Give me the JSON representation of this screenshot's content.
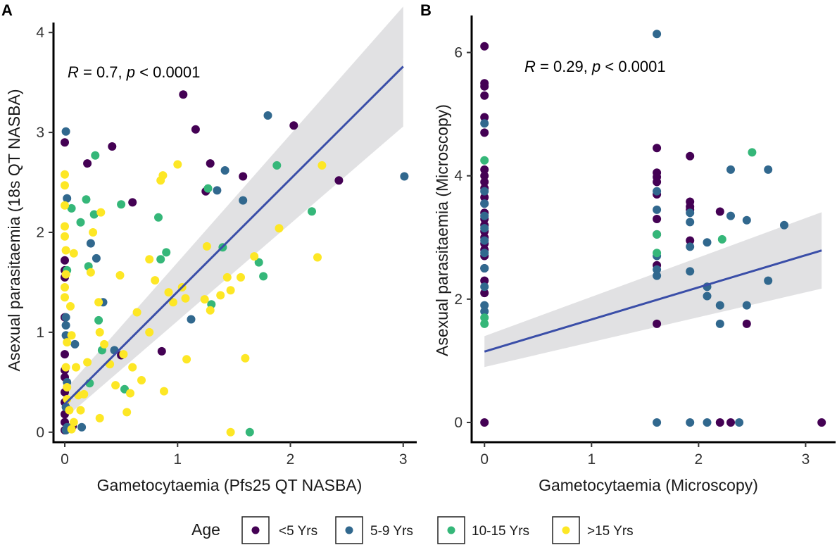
{
  "legend": {
    "title": "Age",
    "items": [
      {
        "label": "<5 Yrs",
        "color": "#440154"
      },
      {
        "label": "5-9 Yrs",
        "color": "#31688E"
      },
      {
        "label": "10-15 Yrs",
        "color": "#35B779"
      },
      {
        "label": ">15 Yrs",
        "color": "#FDE725"
      }
    ]
  },
  "chart_data": [
    {
      "panel_label": "A",
      "type": "scatter",
      "xlabel": "Gametocytaemia (Pfs25 QT NASBA)",
      "ylabel": "Asexual parasitaemia (18s QT NASBA)",
      "xlim": [
        -0.1,
        3.12
      ],
      "ylim": [
        -0.1,
        4.1
      ],
      "xticks": [
        0,
        1,
        2,
        3
      ],
      "yticks": [
        0,
        1,
        2,
        3,
        4
      ],
      "grid": false,
      "annotation": {
        "r_sym": "R",
        "r_text": " = 0.7, ",
        "p_sym": "p",
        "p_text": " < 0.0001"
      },
      "regression": {
        "x0": 0,
        "y0": 0.28,
        "x1": 3.0,
        "y1": 3.66,
        "ci_at_x0": 0.14,
        "ci_at_x1": 0.6,
        "ci_color": "#c8c8cc",
        "line_color": "#3a4ea8"
      },
      "series": [
        {
          "name": "<5 Yrs",
          "points": [
            [
              0,
              2.9
            ],
            [
              0,
              1.72
            ],
            [
              0,
              1.62
            ],
            [
              0,
              1.55
            ],
            [
              0,
              1.15
            ],
            [
              0,
              0.78
            ],
            [
              0,
              0.62
            ],
            [
              0,
              0.55
            ],
            [
              0,
              0.4
            ],
            [
              0,
              0.3
            ],
            [
              0,
              0.18
            ],
            [
              0,
              0.1
            ],
            [
              0,
              0.02
            ],
            [
              0.2,
              2.69
            ],
            [
              0.42,
              2.86
            ],
            [
              0.6,
              2.3
            ],
            [
              0.5,
              0.77
            ],
            [
              0.86,
              0.81
            ],
            [
              1.05,
              3.38
            ],
            [
              1.16,
              3.03
            ],
            [
              1.25,
              2.41
            ],
            [
              1.29,
              2.69
            ],
            [
              1.58,
              2.56
            ],
            [
              2.03,
              3.07
            ],
            [
              2.43,
              2.52
            ],
            [
              0.07,
              0.06
            ]
          ]
        },
        {
          "name": "5-9 Yrs",
          "points": [
            [
              0.01,
              3.01
            ],
            [
              0.02,
              2.34
            ],
            [
              0.01,
              1.15
            ],
            [
              0.01,
              1.07
            ],
            [
              0.01,
              0.97
            ],
            [
              0.02,
              0.5
            ],
            [
              0.01,
              0.25
            ],
            [
              0.02,
              0.05
            ],
            [
              0.01,
              0.02
            ],
            [
              0.09,
              0.88
            ],
            [
              0.15,
              0.05
            ],
            [
              0.23,
              1.89
            ],
            [
              0.28,
              1.74
            ],
            [
              0.34,
              1.3
            ],
            [
              0.44,
              0.82
            ],
            [
              1.12,
              1.13
            ],
            [
              1.35,
              2.42
            ],
            [
              1.42,
              2.62
            ],
            [
              1.58,
              2.32
            ],
            [
              1.8,
              3.17
            ],
            [
              3.01,
              2.56
            ]
          ]
        },
        {
          "name": "10-15 Yrs",
          "points": [
            [
              0.02,
              1.62
            ],
            [
              0.06,
              2.24
            ],
            [
              0.14,
              2.1
            ],
            [
              0.19,
              2.33
            ],
            [
              0.21,
              1.66
            ],
            [
              0.26,
              2.18
            ],
            [
              0.27,
              2.77
            ],
            [
              0.3,
              1.12
            ],
            [
              0.33,
              0.82
            ],
            [
              0.22,
              0.49
            ],
            [
              0.5,
              2.28
            ],
            [
              0.53,
              0.43
            ],
            [
              0.83,
              2.15
            ],
            [
              0.9,
              1.8
            ],
            [
              0.85,
              1.73
            ],
            [
              1.27,
              2.44
            ],
            [
              1.3,
              1.28
            ],
            [
              1.4,
              1.85
            ],
            [
              1.72,
              1.7
            ],
            [
              1.76,
              1.56
            ],
            [
              1.88,
              2.67
            ],
            [
              2.19,
              2.21
            ],
            [
              1.64,
              0
            ]
          ]
        },
        {
          "name": ">15 Yrs",
          "points": [
            [
              0,
              2.58
            ],
            [
              0,
              2.47
            ],
            [
              0,
              2.27
            ],
            [
              0,
              2.06
            ],
            [
              0,
              1.96
            ],
            [
              0.01,
              1.82
            ],
            [
              0.01,
              1.58
            ],
            [
              0,
              1.45
            ],
            [
              0,
              1.35
            ],
            [
              0.02,
              0.9
            ],
            [
              0.01,
              0.65
            ],
            [
              0.02,
              0.45
            ],
            [
              0.02,
              0.33
            ],
            [
              0.04,
              0.22
            ],
            [
              0.06,
              0.03
            ],
            [
              0.08,
              0.1
            ],
            [
              0.05,
              1.26
            ],
            [
              0.08,
              1.79
            ],
            [
              0.06,
              0.97
            ],
            [
              0.1,
              0.65
            ],
            [
              0.12,
              0.37
            ],
            [
              0.14,
              0.22
            ],
            [
              0.17,
              0.38
            ],
            [
              0.2,
              0.7
            ],
            [
              0.23,
              1.6
            ],
            [
              0.25,
              2.0
            ],
            [
              0.32,
              2.2
            ],
            [
              0.3,
              1.3
            ],
            [
              0.31,
              1.0
            ],
            [
              0.31,
              0.14
            ],
            [
              0.35,
              0.88
            ],
            [
              0.4,
              0.68
            ],
            [
              0.45,
              0.47
            ],
            [
              0.49,
              1.57
            ],
            [
              0.52,
              0.78
            ],
            [
              0.55,
              0.2
            ],
            [
              0.58,
              0.39
            ],
            [
              0.6,
              0.65
            ],
            [
              0.64,
              1.2
            ],
            [
              0.68,
              0.52
            ],
            [
              0.75,
              1.73
            ],
            [
              0.75,
              1.0
            ],
            [
              0.8,
              1.52
            ],
            [
              0.85,
              2.52
            ],
            [
              0.87,
              2.57
            ],
            [
              0.88,
              0.41
            ],
            [
              0.92,
              1.4
            ],
            [
              0.96,
              1.3
            ],
            [
              1.0,
              2.68
            ],
            [
              1.04,
              1.45
            ],
            [
              1.07,
              1.34
            ],
            [
              1.08,
              0.73
            ],
            [
              1.24,
              1.33
            ],
            [
              1.26,
              1.86
            ],
            [
              1.29,
              1.22
            ],
            [
              1.38,
              1.37
            ],
            [
              1.44,
              1.55
            ],
            [
              1.47,
              1.42
            ],
            [
              1.47,
              0
            ],
            [
              1.56,
              1.55
            ],
            [
              1.6,
              0.74
            ],
            [
              1.68,
              1.76
            ],
            [
              1.9,
              2.04
            ],
            [
              2.24,
              1.75
            ],
            [
              2.28,
              2.67
            ]
          ]
        }
      ]
    },
    {
      "panel_label": "B",
      "type": "scatter",
      "xlabel": "Gametocytaemia (Microscopy)",
      "ylabel": "Asexual parasitaemia (Microscopy)",
      "xlim": [
        -0.12,
        3.28
      ],
      "ylim": [
        -0.32,
        6.6
      ],
      "xticks": [
        0,
        1,
        2,
        3
      ],
      "yticks": [
        0,
        2,
        4,
        6
      ],
      "grid": false,
      "annotation": {
        "r_sym": "R",
        "r_text": " = 0.29, ",
        "p_sym": "p",
        "p_text": " < 0.0001"
      },
      "regression": {
        "x0": 0,
        "y0": 1.15,
        "x1": 3.15,
        "y1": 2.79,
        "ci_at_x0": 0.25,
        "ci_at_x1": 0.62,
        "ci_color": "#c8c8cc",
        "line_color": "#3a4ea8"
      },
      "series": [
        {
          "name": "<5 Yrs",
          "points": [
            [
              0,
              6.1
            ],
            [
              0,
              5.5
            ],
            [
              0,
              5.45
            ],
            [
              0,
              5.3
            ],
            [
              0,
              4.95
            ],
            [
              0,
              4.7
            ],
            [
              0,
              4.1
            ],
            [
              0,
              4.0
            ],
            [
              0,
              3.9
            ],
            [
              0,
              3.8
            ],
            [
              0,
              3.65
            ],
            [
              0,
              3.55
            ],
            [
              0,
              3.4
            ],
            [
              0,
              3.3
            ],
            [
              0,
              3.2
            ],
            [
              0,
              3.1
            ],
            [
              0,
              3.0
            ],
            [
              0,
              2.9
            ],
            [
              0,
              2.8
            ],
            [
              0,
              2.7
            ],
            [
              0,
              2.5
            ],
            [
              0,
              2.3
            ],
            [
              0,
              2.1
            ],
            [
              0,
              0
            ],
            [
              1.61,
              4.45
            ],
            [
              1.61,
              4.05
            ],
            [
              1.61,
              3.98
            ],
            [
              1.61,
              3.9
            ],
            [
              1.61,
              3.7
            ],
            [
              1.61,
              3.3
            ],
            [
              1.61,
              3.05
            ],
            [
              1.61,
              2.55
            ],
            [
              1.61,
              1.6
            ],
            [
              1.92,
              4.32
            ],
            [
              1.92,
              3.58
            ],
            [
              1.92,
              3.5
            ],
            [
              1.92,
              3.45
            ],
            [
              1.92,
              2.95
            ],
            [
              2.2,
              3.42
            ],
            [
              2.2,
              0
            ],
            [
              2.3,
              0
            ],
            [
              2.45,
              1.6
            ],
            [
              3.15,
              0
            ]
          ]
        },
        {
          "name": "5-9 Yrs",
          "points": [
            [
              0,
              4.85
            ],
            [
              0,
              3.75
            ],
            [
              0,
              3.55
            ],
            [
              0,
              3.35
            ],
            [
              0,
              3.15
            ],
            [
              0,
              2.95
            ],
            [
              0,
              2.75
            ],
            [
              0,
              2.5
            ],
            [
              0,
              2.2
            ],
            [
              0,
              1.9
            ],
            [
              0,
              1.8
            ],
            [
              1.61,
              6.3
            ],
            [
              1.61,
              3.75
            ],
            [
              1.61,
              3.45
            ],
            [
              1.61,
              2.7
            ],
            [
              1.61,
              2.48
            ],
            [
              1.61,
              2.38
            ],
            [
              1.61,
              0
            ],
            [
              1.92,
              3.4
            ],
            [
              1.92,
              3.25
            ],
            [
              1.92,
              2.85
            ],
            [
              1.92,
              2.45
            ],
            [
              1.92,
              0
            ],
            [
              2.08,
              2.92
            ],
            [
              2.08,
              2.2
            ],
            [
              2.08,
              2.05
            ],
            [
              2.08,
              0
            ],
            [
              2.2,
              1.9
            ],
            [
              2.2,
              1.6
            ],
            [
              2.3,
              4.1
            ],
            [
              2.3,
              3.35
            ],
            [
              2.38,
              0
            ],
            [
              2.45,
              3.28
            ],
            [
              2.45,
              1.9
            ],
            [
              2.65,
              4.1
            ],
            [
              2.65,
              2.3
            ],
            [
              2.8,
              3.2
            ]
          ]
        },
        {
          "name": "10-15 Yrs",
          "points": [
            [
              0,
              4.25
            ],
            [
              0,
              1.7
            ],
            [
              0,
              1.6
            ],
            [
              1.61,
              3.05
            ],
            [
              1.61,
              2.75
            ],
            [
              2.22,
              2.97
            ],
            [
              2.5,
              4.38
            ]
          ]
        }
      ]
    }
  ]
}
